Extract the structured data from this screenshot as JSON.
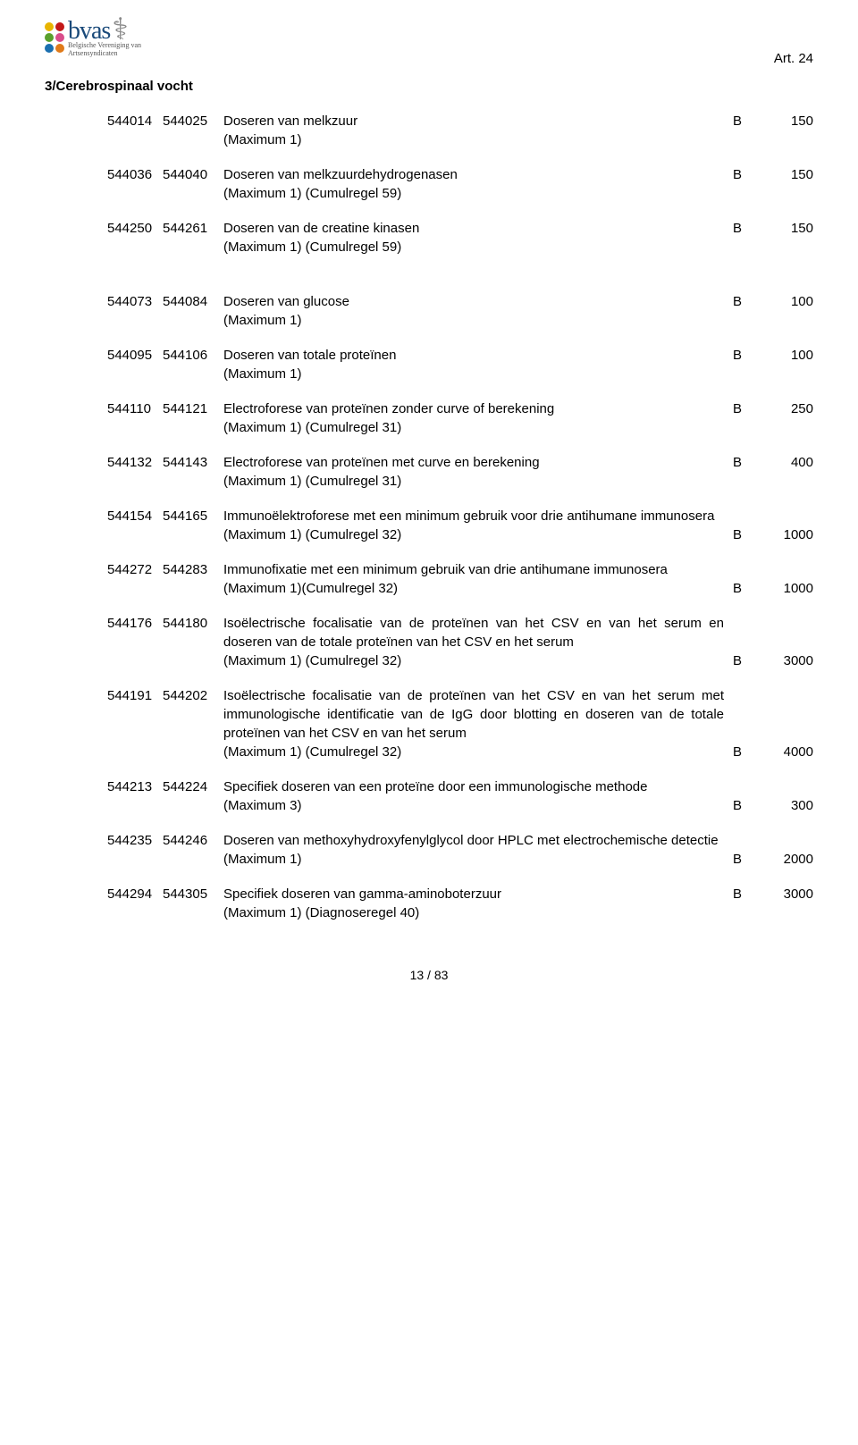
{
  "header": {
    "logo_main": "bvas",
    "logo_sub1": "Belgische Vereniging van",
    "logo_sub2": "Artsensyndicaten",
    "art_label": "Art. 24",
    "dot_colors": [
      "#e8b400",
      "#c31818",
      "#5aa02c",
      "#d94d8a",
      "#1a6fb0",
      "#e07a1a"
    ]
  },
  "section_title": "3/Cerebrospinaal vocht",
  "entries": [
    {
      "c1": "544014",
      "c2": "544025",
      "desc": "Doseren van melkzuur",
      "sub": "(Maximum 1)",
      "letter": "B",
      "val": "150",
      "align": 1
    },
    {
      "c1": "544036",
      "c2": "544040",
      "desc": "Doseren van melkzuurdehydrogenasen",
      "sub": "(Maximum 1) (Cumulregel 59)",
      "letter": "B",
      "val": "150",
      "align": 1
    },
    {
      "c1": "544250",
      "c2": "544261",
      "desc": "Doseren van de creatine kinasen",
      "sub": "(Maximum 1) (Cumulregel 59)",
      "letter": "B",
      "val": "150",
      "align": 1,
      "gap_after": true
    },
    {
      "c1": "544073",
      "c2": "544084",
      "desc": "Doseren van glucose",
      "sub": "(Maximum 1)",
      "letter": "B",
      "val": "100",
      "align": 1
    },
    {
      "c1": "544095",
      "c2": "544106",
      "desc": "Doseren van totale proteïnen",
      "sub": "(Maximum 1)",
      "letter": "B",
      "val": "100",
      "align": 1
    },
    {
      "c1": "544110",
      "c2": "544121",
      "desc": "Electroforese van proteïnen zonder curve of berekening",
      "sub": "(Maximum 1) (Cumulregel 31)",
      "letter": "B",
      "val": "250",
      "align": 1
    },
    {
      "c1": "544132",
      "c2": "544143",
      "desc": "Electroforese van proteïnen met curve en berekening",
      "sub": "(Maximum 1) (Cumulregel 31)",
      "letter": "B",
      "val": "400",
      "align": 1
    },
    {
      "c1": "544154",
      "c2": "544165",
      "desc": "Immunoëlektroforese met een minimum gebruik voor drie antihumane immunosera",
      "sub": "(Maximum 1) (Cumulregel 32)",
      "letter": "B",
      "val": "1000",
      "align": 2
    },
    {
      "c1": "544272",
      "c2": "544283",
      "desc": "Immunofixatie met een minimum gebruik van drie antihumane immunosera",
      "sub": "(Maximum 1)(Cumulregel 32)",
      "letter": "B",
      "val": "1000",
      "align": 2
    },
    {
      "c1": "544176",
      "c2": "544180",
      "desc": "Isoëlectrische focalisatie van de proteïnen van het CSV en van het serum en doseren van de totale proteïnen van het CSV en het serum",
      "sub": "(Maximum 1) (Cumulregel 32)",
      "letter": "B",
      "val": "3000",
      "align": 3
    },
    {
      "c1": "544191",
      "c2": "544202",
      "desc": "Isoëlectrische focalisatie van de proteïnen van het CSV en van het serum met immunologische identificatie van de IgG door blotting en doseren van de totale proteïnen van het CSV en van het serum",
      "sub": "(Maximum 1) (Cumulregel 32)",
      "letter": "B",
      "val": "4000",
      "align": 4
    },
    {
      "c1": "544213",
      "c2": "544224",
      "desc": "Specifiek doseren van een proteïne door een immunologische methode",
      "sub": "(Maximum 3)",
      "letter": "B",
      "val": "300",
      "align": 2
    },
    {
      "c1": "544235",
      "c2": "544246",
      "desc": "Doseren van methoxyhydroxyfenylglycol door HPLC met electrochemische detectie",
      "sub": "(Maximum 1)",
      "letter": "B",
      "val": "2000",
      "align": 2
    },
    {
      "c1": "544294",
      "c2": "544305",
      "desc": "Specifiek doseren van gamma-aminoboterzuur",
      "sub": "(Maximum 1) (Diagnoseregel 40)",
      "letter": "B",
      "val": "3000",
      "align": 1
    }
  ],
  "page_number": "13 / 83"
}
